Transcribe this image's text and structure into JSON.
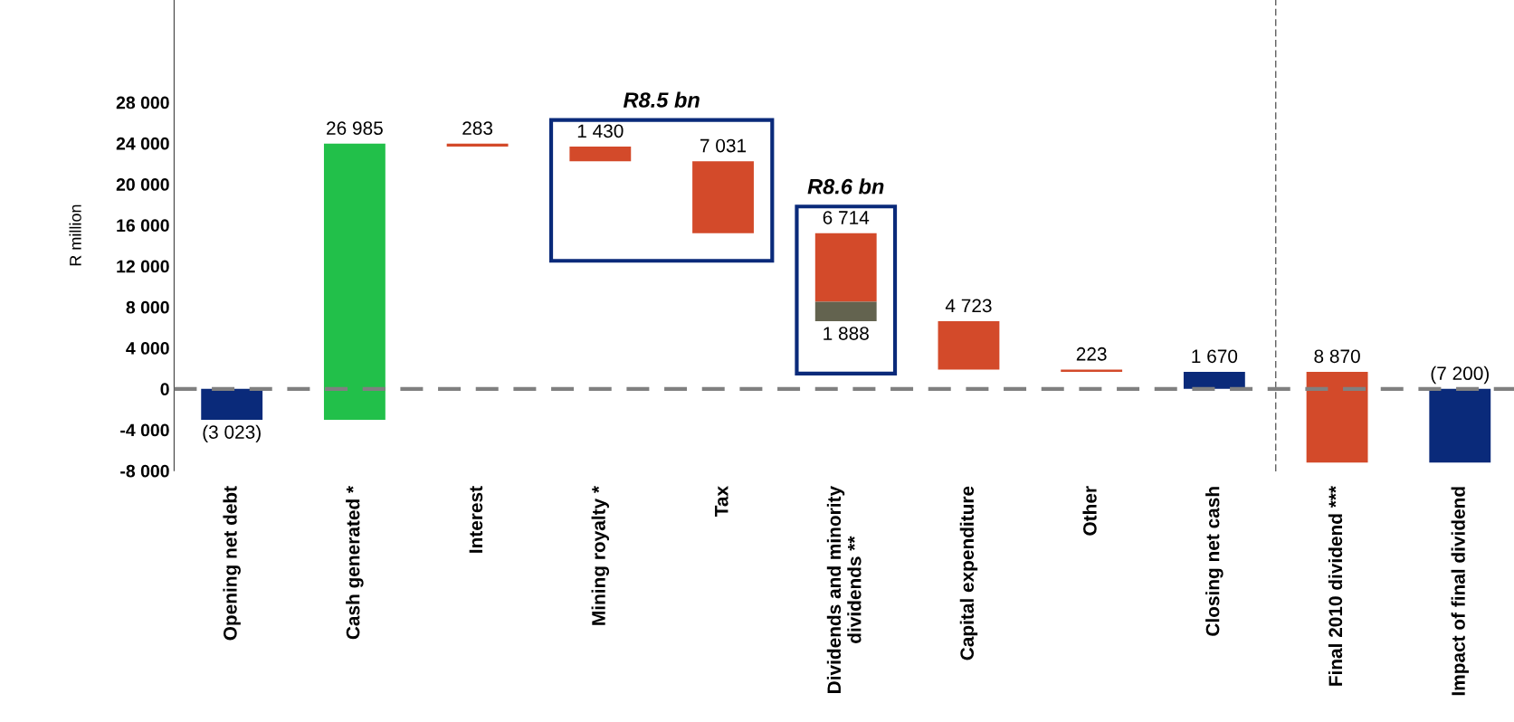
{
  "chart_data": {
    "type": "bar",
    "ylabel": "R million",
    "categories": [
      "Opening net debt",
      "Cash generated *",
      "Interest",
      "Mining royalty *",
      "Tax",
      "Dividends and minority\ndividends **",
      "Capital expenditure",
      "Other",
      "Closing net cash",
      "Final 2010 dividend ***",
      "Impact of final dividend"
    ],
    "series": [
      {
        "values": [
          -3023,
          26985,
          -283,
          -1430,
          -7031,
          -6714,
          -4723,
          -223,
          1670,
          -8870,
          -7200
        ],
        "base": [
          0,
          -3023,
          23962,
          23679,
          22249,
          15218,
          6616,
          1893,
          0,
          1670,
          0
        ],
        "colors": [
          "#0a2a7a",
          "#22c04a",
          "#d34a2a",
          "#d34a2a",
          "#d34a2a",
          "#d34a2a",
          "#d34a2a",
          "#d34a2a",
          "#0a2a7a",
          "#d34a2a",
          "#0a2a7a"
        ],
        "value_labels": [
          "(3 023)",
          "26 985",
          "283",
          "1 430",
          "7 031",
          "6 714",
          "4 723",
          "223",
          "1 670",
          "8 870",
          "(7 200)"
        ]
      },
      {
        "values": [
          null,
          null,
          null,
          null,
          null,
          -1888,
          null,
          null,
          null,
          null,
          null
        ],
        "base": [
          null,
          null,
          null,
          null,
          null,
          8504,
          null,
          null,
          null,
          null,
          null
        ],
        "color": "#63634f",
        "value_labels": [
          null,
          null,
          null,
          null,
          null,
          "1 888",
          null,
          null,
          null,
          null,
          null
        ]
      }
    ],
    "ylim": [
      -8000,
      38000
    ],
    "yticks": [
      {
        "value": -8000,
        "label": "-8 000"
      },
      {
        "value": -4000,
        "label": "-4 000"
      },
      0,
      {
        "value": 4000,
        "label": "4 000"
      },
      {
        "value": 8000,
        "label": "8 000"
      },
      {
        "value": 12000,
        "label": "12 000"
      },
      {
        "value": 16000,
        "label": "16 000"
      },
      {
        "value": 20000,
        "label": "20 000"
      },
      {
        "value": 24000,
        "label": "24 000"
      },
      {
        "value": 28000,
        "label": "28 000"
      }
    ],
    "ref_lines": [
      {
        "axis": "y",
        "value": 0,
        "color": "#808080",
        "line_style": "dashed"
      }
    ],
    "annotations": [
      "R8.5 bn",
      "R8.6 bn"
    ],
    "grid": false,
    "legend": false
  }
}
